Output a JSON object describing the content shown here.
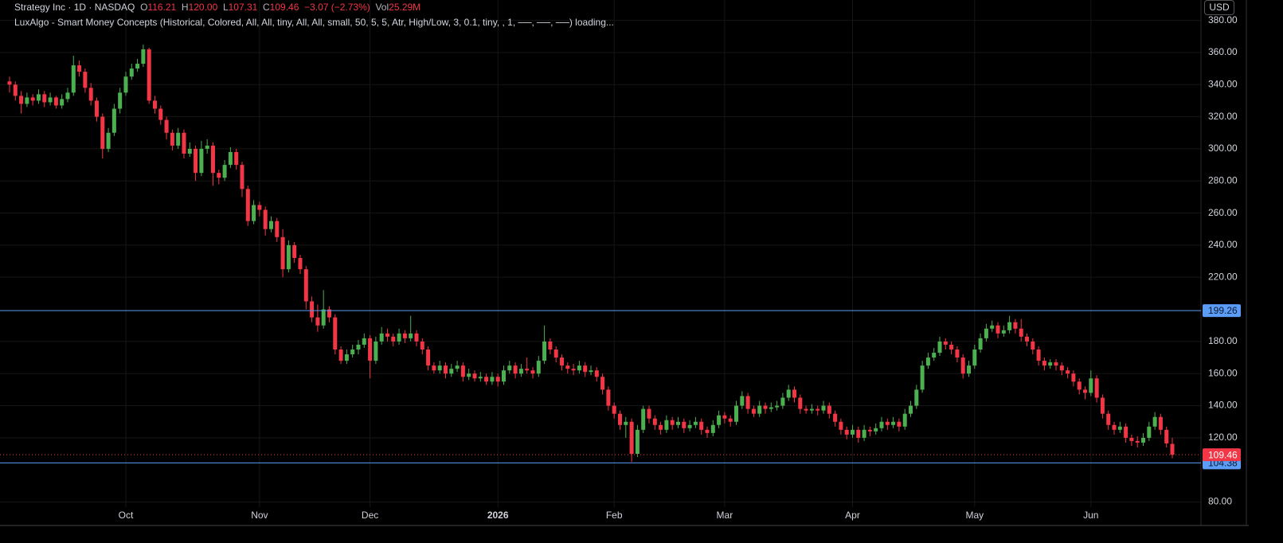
{
  "header": {
    "symbol": "Strategy Inc · 1D · NASDAQ",
    "o_label": "O",
    "o": "116.21",
    "h_label": "H",
    "h": "120.00",
    "l_label": "L",
    "l": "107.31",
    "c_label": "C",
    "c": "109.46",
    "change": "−3.07 (−2.73%)",
    "vol_label": "Vol",
    "vol": "25.29M",
    "indicator": "LuxAlgo - Smart Money Concepts (Historical, Colored, All, All, tiny, All, All, small, 50, 5, 5, Atr, High/Low, 3, 0.1, tiny, , 1, ──, ──, ──) loading...",
    "currency": "USD"
  },
  "chart_data": {
    "type": "candlestick",
    "up_color": "#4caf50",
    "down_color": "#f23645",
    "grid": true,
    "xlim": [
      -1.64,
      204.93
    ],
    "ylim": [
      76.8,
      392.7
    ],
    "xticks": [
      {
        "value": 20,
        "label": "Oct"
      },
      {
        "value": 43,
        "label": "Nov"
      },
      {
        "value": 62,
        "label": "Dec"
      },
      {
        "value": 84,
        "label": "2026"
      },
      {
        "value": 104,
        "label": "Feb"
      },
      {
        "value": 123,
        "label": "Mar"
      },
      {
        "value": 145,
        "label": "Apr"
      },
      {
        "value": 166,
        "label": "May"
      },
      {
        "value": 186,
        "label": "Jun"
      }
    ],
    "yticks": [
      {
        "value": 80,
        "label": "80.00"
      },
      {
        "value": 120,
        "label": "120.00"
      },
      {
        "value": 140,
        "label": "140.00"
      },
      {
        "value": 160,
        "label": "160.00"
      },
      {
        "value": 180,
        "label": "180.00"
      },
      {
        "value": 220,
        "label": "220.00"
      },
      {
        "value": 240,
        "label": "240.00"
      },
      {
        "value": 260,
        "label": "260.00"
      },
      {
        "value": 280,
        "label": "280.00"
      },
      {
        "value": 300,
        "label": "300.00"
      },
      {
        "value": 320,
        "label": "320.00"
      },
      {
        "value": 340,
        "label": "340.00"
      },
      {
        "value": 360,
        "label": "360.00"
      },
      {
        "value": 380,
        "label": "380.00"
      }
    ],
    "levels": [
      {
        "value": 199.26,
        "label": "199.26",
        "color": "#5b9cf6"
      },
      {
        "value": 104.38,
        "label": "104.38",
        "color": "#5b9cf6"
      }
    ],
    "last_price": {
      "value": 109.46,
      "label": "109.46",
      "color": "#f23645"
    },
    "ohlc": [
      [
        342,
        345,
        335,
        340
      ],
      [
        340,
        342,
        330,
        333
      ],
      [
        333,
        336,
        322,
        328
      ],
      [
        328,
        335,
        326,
        332
      ],
      [
        332,
        334,
        327,
        330
      ],
      [
        330,
        337,
        328,
        334
      ],
      [
        334,
        336,
        326,
        329
      ],
      [
        329,
        335,
        327,
        332
      ],
      [
        332,
        333,
        325,
        327
      ],
      [
        327,
        334,
        325,
        331
      ],
      [
        331,
        338,
        329,
        335
      ],
      [
        335,
        358,
        333,
        352
      ],
      [
        352,
        355,
        345,
        348
      ],
      [
        348,
        350,
        335,
        338
      ],
      [
        338,
        341,
        327,
        330
      ],
      [
        330,
        332,
        317,
        320
      ],
      [
        320,
        322,
        294,
        300
      ],
      [
        300,
        313,
        298,
        310
      ],
      [
        310,
        328,
        308,
        325
      ],
      [
        325,
        338,
        322,
        335
      ],
      [
        335,
        348,
        333,
        345
      ],
      [
        345,
        353,
        343,
        350
      ],
      [
        350,
        356,
        348,
        353
      ],
      [
        353,
        365,
        351,
        362
      ],
      [
        362,
        363,
        328,
        330
      ],
      [
        330,
        333,
        322,
        325
      ],
      [
        325,
        327,
        315,
        318
      ],
      [
        318,
        320,
        306,
        310
      ],
      [
        310,
        312,
        299,
        302
      ],
      [
        302,
        313,
        300,
        310
      ],
      [
        310,
        312,
        294,
        297
      ],
      [
        297,
        304,
        295,
        300
      ],
      [
        300,
        302,
        280,
        285
      ],
      [
        285,
        305,
        283,
        300
      ],
      [
        300,
        306,
        297,
        302
      ],
      [
        302,
        304,
        277,
        285
      ],
      [
        285,
        287,
        278,
        282
      ],
      [
        282,
        293,
        280,
        290
      ],
      [
        290,
        301,
        288,
        298
      ],
      [
        298,
        300,
        287,
        290
      ],
      [
        290,
        292,
        270,
        275
      ],
      [
        275,
        277,
        252,
        255
      ],
      [
        255,
        268,
        253,
        265
      ],
      [
        265,
        267,
        258,
        262
      ],
      [
        262,
        264,
        246,
        250
      ],
      [
        250,
        258,
        248,
        255
      ],
      [
        255,
        257,
        242,
        245
      ],
      [
        245,
        250,
        220,
        225
      ],
      [
        225,
        243,
        223,
        240
      ],
      [
        240,
        242,
        229,
        232
      ],
      [
        232,
        234,
        222,
        225
      ],
      [
        225,
        227,
        200,
        205
      ],
      [
        205,
        208,
        192,
        195
      ],
      [
        195,
        203,
        186,
        190
      ],
      [
        190,
        212,
        188,
        200
      ],
      [
        200,
        202,
        192,
        195
      ],
      [
        195,
        197,
        172,
        175
      ],
      [
        175,
        177,
        166,
        168
      ],
      [
        168,
        175,
        166,
        172
      ],
      [
        172,
        178,
        170,
        175
      ],
      [
        175,
        181,
        172,
        178
      ],
      [
        178,
        185,
        176,
        182
      ],
      [
        182,
        184,
        157,
        168
      ],
      [
        168,
        183,
        166,
        180
      ],
      [
        180,
        189,
        178,
        185
      ],
      [
        185,
        188,
        180,
        183
      ],
      [
        183,
        185,
        177,
        180
      ],
      [
        180,
        188,
        178,
        185
      ],
      [
        185,
        187,
        179,
        182
      ],
      [
        182,
        196,
        180,
        185
      ],
      [
        185,
        187,
        177,
        180
      ],
      [
        180,
        182,
        172,
        175
      ],
      [
        175,
        177,
        162,
        165
      ],
      [
        165,
        167,
        160,
        162
      ],
      [
        162,
        168,
        160,
        165
      ],
      [
        165,
        167,
        157,
        160
      ],
      [
        160,
        166,
        158,
        163
      ],
      [
        163,
        168,
        161,
        165
      ],
      [
        165,
        167,
        155,
        158
      ],
      [
        158,
        163,
        156,
        160
      ],
      [
        160,
        162,
        155,
        157
      ],
      [
        157,
        161,
        155,
        158
      ],
      [
        158,
        160,
        153,
        155
      ],
      [
        155,
        161,
        153,
        158
      ],
      [
        158,
        160,
        152,
        155
      ],
      [
        155,
        165,
        153,
        162
      ],
      [
        162,
        168,
        160,
        165
      ],
      [
        165,
        167,
        157,
        160
      ],
      [
        160,
        166,
        158,
        163
      ],
      [
        163,
        170,
        160,
        162
      ],
      [
        162,
        164,
        157,
        160
      ],
      [
        160,
        171,
        158,
        168
      ],
      [
        168,
        190,
        166,
        180
      ],
      [
        180,
        182,
        172,
        175
      ],
      [
        175,
        177,
        167,
        170
      ],
      [
        170,
        172,
        162,
        165
      ],
      [
        165,
        167,
        160,
        163
      ],
      [
        163,
        166,
        159,
        162
      ],
      [
        162,
        168,
        160,
        165
      ],
      [
        165,
        167,
        158,
        161
      ],
      [
        161,
        165,
        159,
        162
      ],
      [
        162,
        164,
        155,
        158
      ],
      [
        158,
        160,
        147,
        150
      ],
      [
        150,
        152,
        137,
        140
      ],
      [
        140,
        142,
        132,
        135
      ],
      [
        135,
        137,
        125,
        128
      ],
      [
        128,
        133,
        120,
        130
      ],
      [
        130,
        132,
        105,
        110
      ],
      [
        110,
        128,
        108,
        125
      ],
      [
        125,
        140,
        123,
        138
      ],
      [
        138,
        140,
        129,
        132
      ],
      [
        132,
        134,
        125,
        128
      ],
      [
        128,
        130,
        122,
        125
      ],
      [
        125,
        134,
        123,
        131
      ],
      [
        131,
        133,
        125,
        128
      ],
      [
        128,
        133,
        126,
        130
      ],
      [
        130,
        132,
        123,
        126
      ],
      [
        126,
        131,
        124,
        128
      ],
      [
        128,
        133,
        126,
        130
      ],
      [
        130,
        132,
        122,
        125
      ],
      [
        125,
        127,
        120,
        123
      ],
      [
        123,
        131,
        121,
        128
      ],
      [
        128,
        137,
        126,
        134
      ],
      [
        134,
        136,
        129,
        132
      ],
      [
        132,
        134,
        127,
        130
      ],
      [
        130,
        143,
        128,
        140
      ],
      [
        140,
        149,
        138,
        146
      ],
      [
        146,
        148,
        135,
        138
      ],
      [
        138,
        140,
        133,
        135
      ],
      [
        135,
        143,
        133,
        140
      ],
      [
        140,
        142,
        135,
        138
      ],
      [
        138,
        142,
        136,
        139
      ],
      [
        139,
        143,
        137,
        140
      ],
      [
        140,
        148,
        138,
        145
      ],
      [
        145,
        153,
        143,
        150
      ],
      [
        150,
        152,
        142,
        145
      ],
      [
        145,
        147,
        135,
        138
      ],
      [
        138,
        140,
        135,
        137
      ],
      [
        137,
        141,
        135,
        138
      ],
      [
        138,
        140,
        134,
        137
      ],
      [
        137,
        143,
        135,
        140
      ],
      [
        140,
        142,
        132,
        135
      ],
      [
        135,
        137,
        127,
        130
      ],
      [
        130,
        132,
        122,
        125
      ],
      [
        125,
        127,
        119,
        122
      ],
      [
        122,
        128,
        120,
        125
      ],
      [
        125,
        127,
        117,
        120
      ],
      [
        120,
        128,
        118,
        125
      ],
      [
        125,
        127,
        121,
        124
      ],
      [
        124,
        129,
        122,
        126
      ],
      [
        126,
        133,
        124,
        130
      ],
      [
        130,
        132,
        125,
        128
      ],
      [
        128,
        133,
        126,
        130
      ],
      [
        130,
        132,
        124,
        127
      ],
      [
        127,
        138,
        125,
        135
      ],
      [
        135,
        143,
        133,
        140
      ],
      [
        140,
        153,
        138,
        150
      ],
      [
        150,
        168,
        148,
        165
      ],
      [
        165,
        173,
        163,
        170
      ],
      [
        170,
        176,
        168,
        173
      ],
      [
        173,
        183,
        171,
        180
      ],
      [
        180,
        182,
        175,
        178
      ],
      [
        178,
        180,
        172,
        175
      ],
      [
        175,
        177,
        167,
        170
      ],
      [
        170,
        172,
        157,
        160
      ],
      [
        160,
        168,
        158,
        165
      ],
      [
        165,
        178,
        163,
        175
      ],
      [
        175,
        185,
        173,
        182
      ],
      [
        182,
        191,
        180,
        188
      ],
      [
        188,
        193,
        186,
        190
      ],
      [
        190,
        192,
        182,
        185
      ],
      [
        185,
        190,
        183,
        187
      ],
      [
        187,
        196,
        185,
        192
      ],
      [
        192,
        194,
        185,
        188
      ],
      [
        188,
        194,
        180,
        183
      ],
      [
        183,
        185,
        177,
        180
      ],
      [
        180,
        182,
        172,
        175
      ],
      [
        175,
        177,
        165,
        168
      ],
      [
        168,
        170,
        162,
        165
      ],
      [
        165,
        169,
        163,
        167
      ],
      [
        167,
        169,
        162,
        165
      ],
      [
        165,
        167,
        159,
        162
      ],
      [
        162,
        164,
        157,
        160
      ],
      [
        160,
        162,
        152,
        155
      ],
      [
        155,
        157,
        147,
        150
      ],
      [
        150,
        152,
        144,
        148
      ],
      [
        148,
        162,
        146,
        157
      ],
      [
        157,
        159,
        142,
        145
      ],
      [
        145,
        147,
        132,
        135
      ],
      [
        135,
        137,
        125,
        128
      ],
      [
        128,
        130,
        122,
        125
      ],
      [
        125,
        130,
        123,
        127
      ],
      [
        127,
        129,
        117,
        120
      ],
      [
        120,
        122,
        115,
        118
      ],
      [
        118,
        121,
        114,
        117
      ],
      [
        117,
        123,
        115,
        120
      ],
      [
        120,
        130,
        118,
        127
      ],
      [
        127,
        136,
        125,
        133
      ],
      [
        133,
        135,
        122,
        125
      ],
      [
        125,
        127,
        114,
        116.5
      ],
      [
        116.21,
        120.0,
        107.31,
        109.46
      ]
    ]
  }
}
